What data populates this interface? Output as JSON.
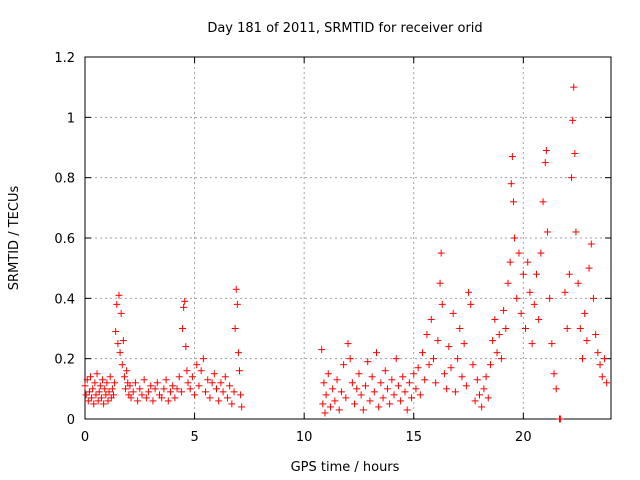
{
  "chart_data": {
    "type": "scatter",
    "title": "Day 181 of 2011, SRMTID for receiver orid",
    "xlabel": "GPS time / hours",
    "ylabel": "SRMTID / TECUs",
    "xlim": [
      0,
      24
    ],
    "ylim": [
      0,
      1.2
    ],
    "xticks": [
      0,
      5,
      10,
      15,
      20
    ],
    "yticks": [
      0,
      0.2,
      0.4,
      0.6,
      0.8,
      1,
      1.2
    ],
    "ytick_labels": [
      "0",
      "0.2",
      "0.4",
      "0.6",
      "0.8",
      "1",
      "1.2"
    ],
    "xtick_labels": [
      "0",
      "5",
      "10",
      "15",
      "20"
    ],
    "grid": true,
    "marker": "+",
    "color": "#ff0000",
    "series": [
      {
        "name": "SRMTID",
        "points": [
          [
            0.0,
            0.11
          ],
          [
            0.05,
            0.08
          ],
          [
            0.1,
            0.13
          ],
          [
            0.15,
            0.06
          ],
          [
            0.2,
            0.09
          ],
          [
            0.25,
            0.14
          ],
          [
            0.3,
            0.07
          ],
          [
            0.35,
            0.1
          ],
          [
            0.4,
            0.05
          ],
          [
            0.45,
            0.12
          ],
          [
            0.5,
            0.08
          ],
          [
            0.55,
            0.15
          ],
          [
            0.6,
            0.06
          ],
          [
            0.65,
            0.09
          ],
          [
            0.7,
            0.11
          ],
          [
            0.75,
            0.07
          ],
          [
            0.8,
            0.13
          ],
          [
            0.85,
            0.05
          ],
          [
            0.9,
            0.1
          ],
          [
            0.95,
            0.08
          ],
          [
            1.0,
            0.12
          ],
          [
            1.05,
            0.06
          ],
          [
            1.1,
            0.09
          ],
          [
            1.15,
            0.14
          ],
          [
            1.2,
            0.07
          ],
          [
            1.25,
            0.1
          ],
          [
            1.3,
            0.08
          ],
          [
            1.35,
            0.12
          ],
          [
            1.4,
            0.29
          ],
          [
            1.45,
            0.38
          ],
          [
            1.5,
            0.25
          ],
          [
            1.55,
            0.41
          ],
          [
            1.6,
            0.22
          ],
          [
            1.65,
            0.35
          ],
          [
            1.7,
            0.18
          ],
          [
            1.75,
            0.26
          ],
          [
            1.8,
            0.14
          ],
          [
            1.85,
            0.1
          ],
          [
            1.9,
            0.16
          ],
          [
            1.95,
            0.12
          ],
          [
            2.0,
            0.08
          ],
          [
            2.05,
            0.11
          ],
          [
            2.1,
            0.07
          ],
          [
            2.2,
            0.09
          ],
          [
            2.3,
            0.12
          ],
          [
            2.4,
            0.06
          ],
          [
            2.5,
            0.1
          ],
          [
            2.6,
            0.08
          ],
          [
            2.7,
            0.13
          ],
          [
            2.8,
            0.07
          ],
          [
            2.9,
            0.09
          ],
          [
            3.0,
            0.11
          ],
          [
            3.1,
            0.06
          ],
          [
            3.2,
            0.1
          ],
          [
            3.3,
            0.12
          ],
          [
            3.4,
            0.08
          ],
          [
            3.5,
            0.07
          ],
          [
            3.6,
            0.1
          ],
          [
            3.7,
            0.13
          ],
          [
            3.8,
            0.06
          ],
          [
            3.9,
            0.09
          ],
          [
            4.0,
            0.11
          ],
          [
            4.1,
            0.07
          ],
          [
            4.2,
            0.1
          ],
          [
            4.3,
            0.14
          ],
          [
            4.4,
            0.09
          ],
          [
            4.45,
            0.3
          ],
          [
            4.5,
            0.37
          ],
          [
            4.55,
            0.39
          ],
          [
            4.6,
            0.24
          ],
          [
            4.65,
            0.16
          ],
          [
            4.7,
            0.12
          ],
          [
            4.8,
            0.1
          ],
          [
            4.9,
            0.14
          ],
          [
            5.0,
            0.08
          ],
          [
            5.1,
            0.18
          ],
          [
            5.2,
            0.11
          ],
          [
            5.3,
            0.16
          ],
          [
            5.4,
            0.2
          ],
          [
            5.5,
            0.09
          ],
          [
            5.6,
            0.13
          ],
          [
            5.7,
            0.07
          ],
          [
            5.8,
            0.12
          ],
          [
            5.9,
            0.15
          ],
          [
            6.0,
            0.1
          ],
          [
            6.1,
            0.06
          ],
          [
            6.2,
            0.12
          ],
          [
            6.3,
            0.09
          ],
          [
            6.4,
            0.14
          ],
          [
            6.5,
            0.07
          ],
          [
            6.6,
            0.11
          ],
          [
            6.7,
            0.05
          ],
          [
            6.8,
            0.09
          ],
          [
            6.85,
            0.3
          ],
          [
            6.9,
            0.43
          ],
          [
            6.95,
            0.38
          ],
          [
            7.0,
            0.22
          ],
          [
            7.05,
            0.16
          ],
          [
            7.1,
            0.08
          ],
          [
            7.15,
            0.04
          ],
          [
            10.8,
            0.23
          ],
          [
            10.85,
            0.05
          ],
          [
            10.9,
            0.12
          ],
          [
            10.95,
            0.02
          ],
          [
            11.0,
            0.08
          ],
          [
            11.1,
            0.15
          ],
          [
            11.2,
            0.04
          ],
          [
            11.3,
            0.1
          ],
          [
            11.4,
            0.06
          ],
          [
            11.5,
            0.13
          ],
          [
            11.6,
            0.03
          ],
          [
            11.7,
            0.09
          ],
          [
            11.8,
            0.18
          ],
          [
            11.9,
            0.07
          ],
          [
            12.0,
            0.25
          ],
          [
            12.1,
            0.2
          ],
          [
            12.2,
            0.12
          ],
          [
            12.3,
            0.05
          ],
          [
            12.4,
            0.1
          ],
          [
            12.5,
            0.15
          ],
          [
            12.6,
            0.08
          ],
          [
            12.7,
            0.03
          ],
          [
            12.8,
            0.11
          ],
          [
            12.9,
            0.19
          ],
          [
            13.0,
            0.06
          ],
          [
            13.1,
            0.14
          ],
          [
            13.2,
            0.09
          ],
          [
            13.3,
            0.22
          ],
          [
            13.4,
            0.04
          ],
          [
            13.5,
            0.12
          ],
          [
            13.6,
            0.07
          ],
          [
            13.7,
            0.16
          ],
          [
            13.8,
            0.1
          ],
          [
            13.9,
            0.05
          ],
          [
            14.0,
            0.13
          ],
          [
            14.1,
            0.08
          ],
          [
            14.2,
            0.2
          ],
          [
            14.3,
            0.11
          ],
          [
            14.4,
            0.06
          ],
          [
            14.5,
            0.14
          ],
          [
            14.6,
            0.09
          ],
          [
            14.7,
            0.03
          ],
          [
            14.8,
            0.12
          ],
          [
            14.9,
            0.07
          ],
          [
            15.0,
            0.15
          ],
          [
            15.1,
            0.1
          ],
          [
            15.2,
            0.17
          ],
          [
            15.3,
            0.08
          ],
          [
            15.4,
            0.22
          ],
          [
            15.5,
            0.13
          ],
          [
            15.6,
            0.28
          ],
          [
            15.7,
            0.18
          ],
          [
            15.8,
            0.33
          ],
          [
            15.9,
            0.2
          ],
          [
            16.0,
            0.12
          ],
          [
            16.1,
            0.26
          ],
          [
            16.2,
            0.45
          ],
          [
            16.25,
            0.55
          ],
          [
            16.3,
            0.38
          ],
          [
            16.4,
            0.15
          ],
          [
            16.5,
            0.1
          ],
          [
            16.6,
            0.24
          ],
          [
            16.7,
            0.17
          ],
          [
            16.8,
            0.35
          ],
          [
            16.9,
            0.09
          ],
          [
            17.0,
            0.2
          ],
          [
            17.1,
            0.3
          ],
          [
            17.2,
            0.14
          ],
          [
            17.3,
            0.25
          ],
          [
            17.4,
            0.11
          ],
          [
            17.5,
            0.42
          ],
          [
            17.6,
            0.38
          ],
          [
            17.7,
            0.18
          ],
          [
            17.8,
            0.06
          ],
          [
            17.9,
            0.13
          ],
          [
            18.0,
            0.08
          ],
          [
            18.1,
            0.04
          ],
          [
            18.2,
            0.1
          ],
          [
            18.3,
            0.14
          ],
          [
            18.4,
            0.07
          ],
          [
            18.5,
            0.18
          ],
          [
            18.6,
            0.26
          ],
          [
            18.7,
            0.33
          ],
          [
            18.8,
            0.22
          ],
          [
            18.9,
            0.28
          ],
          [
            19.0,
            0.2
          ],
          [
            19.1,
            0.36
          ],
          [
            19.2,
            0.3
          ],
          [
            19.3,
            0.45
          ],
          [
            19.4,
            0.52
          ],
          [
            19.45,
            0.78
          ],
          [
            19.5,
            0.87
          ],
          [
            19.55,
            0.72
          ],
          [
            19.6,
            0.6
          ],
          [
            19.7,
            0.4
          ],
          [
            19.8,
            0.55
          ],
          [
            19.9,
            0.35
          ],
          [
            20.0,
            0.48
          ],
          [
            20.1,
            0.3
          ],
          [
            20.2,
            0.52
          ],
          [
            20.3,
            0.42
          ],
          [
            20.4,
            0.25
          ],
          [
            20.5,
            0.38
          ],
          [
            20.6,
            0.48
          ],
          [
            20.7,
            0.33
          ],
          [
            20.8,
            0.55
          ],
          [
            20.9,
            0.72
          ],
          [
            21.0,
            0.85
          ],
          [
            21.05,
            0.89
          ],
          [
            21.1,
            0.62
          ],
          [
            21.2,
            0.4
          ],
          [
            21.3,
            0.25
          ],
          [
            21.4,
            0.15
          ],
          [
            21.5,
            0.1
          ],
          [
            21.65,
            0.0
          ],
          [
            21.7,
            0.0
          ],
          [
            21.9,
            0.42
          ],
          [
            22.0,
            0.3
          ],
          [
            22.1,
            0.48
          ],
          [
            22.2,
            0.8
          ],
          [
            22.25,
            0.99
          ],
          [
            22.3,
            1.1
          ],
          [
            22.35,
            0.88
          ],
          [
            22.4,
            0.62
          ],
          [
            22.5,
            0.45
          ],
          [
            22.6,
            0.3
          ],
          [
            22.7,
            0.2
          ],
          [
            22.8,
            0.35
          ],
          [
            22.9,
            0.26
          ],
          [
            23.0,
            0.5
          ],
          [
            23.1,
            0.58
          ],
          [
            23.2,
            0.4
          ],
          [
            23.3,
            0.28
          ],
          [
            23.4,
            0.22
          ],
          [
            23.5,
            0.18
          ],
          [
            23.6,
            0.14
          ],
          [
            23.7,
            0.2
          ],
          [
            23.8,
            0.12
          ]
        ]
      }
    ]
  }
}
